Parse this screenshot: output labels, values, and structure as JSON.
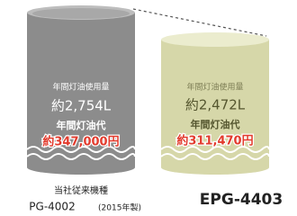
{
  "products": [
    {
      "caption": "当社従来機種",
      "model": "PG-4002",
      "year_note": "(2015年製)",
      "usage_label": "年間灯油使用量",
      "usage": "約2,754L",
      "cost_label": "年間灯油代",
      "cost": "約347,000円"
    },
    {
      "model": "EPG-4403",
      "usage_label": "年間灯油使用量",
      "usage": "約2,472L",
      "cost_label": "年間灯油代",
      "cost": "約311,470円"
    }
  ]
}
